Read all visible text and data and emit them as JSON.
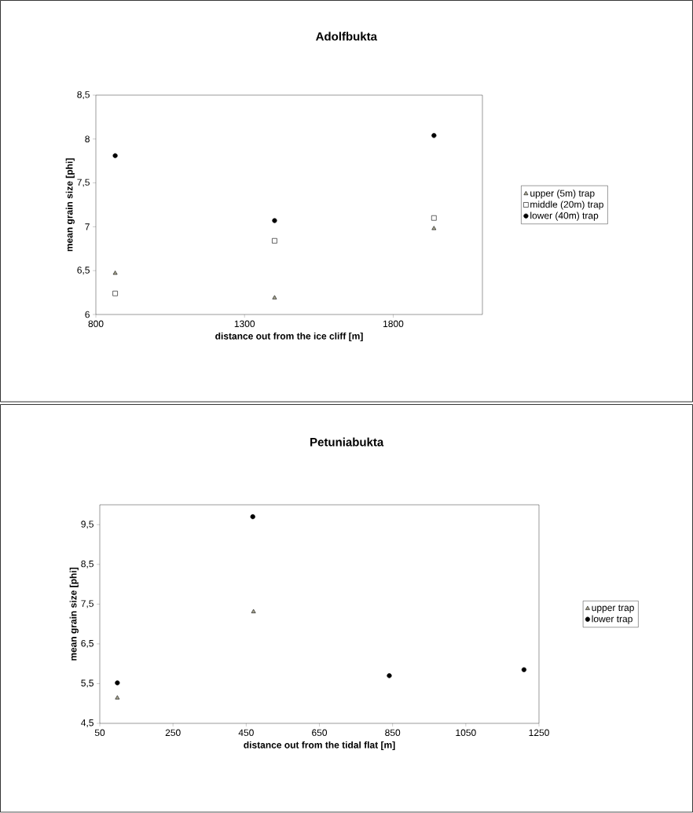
{
  "chart_data": [
    {
      "type": "scatter",
      "title": "Adolfbukta",
      "xlabel": "distance out from the ice cliff [m]",
      "ylabel": "mean grain size [phi]",
      "xlim": [
        800,
        2100
      ],
      "ylim": [
        6,
        8.5
      ],
      "xticks": [
        800,
        1300,
        1800
      ],
      "yticks": [
        6,
        {
          "value": 6.5,
          "label": "6,5"
        },
        7,
        {
          "value": 7.5,
          "label": "7,5"
        },
        8,
        {
          "value": 8.5,
          "label": "8,5"
        }
      ],
      "legend": "right",
      "grid": false,
      "series": [
        {
          "name": "upper (5m) trap",
          "color": "#a8a690",
          "marker": "triangle",
          "x": [
            865,
            1401,
            1937
          ],
          "values": [
            6.47,
            6.19,
            6.98
          ]
        },
        {
          "name": "middle (20m) trap",
          "color": "#ffffff",
          "marker": "square",
          "x": [
            865,
            1401,
            1937
          ],
          "values": [
            6.24,
            6.84,
            7.1
          ]
        },
        {
          "name": "lower (40m) trap",
          "color": "#000000",
          "marker": "circle",
          "x": [
            865,
            1401,
            1937
          ],
          "values": [
            7.81,
            7.07,
            8.04
          ]
        }
      ]
    },
    {
      "type": "scatter",
      "title": "Petuniabukta",
      "xlabel": "distance out from the tidal flat [m]",
      "ylabel": "mean grain size [phi]",
      "xlim": [
        50,
        1250
      ],
      "ylim": [
        4.5,
        10
      ],
      "xticks": [
        50,
        250,
        450,
        650,
        850,
        1050,
        1250
      ],
      "yticks": [
        {
          "value": 4.5,
          "label": "4,5"
        },
        {
          "value": 5.5,
          "label": "5,5"
        },
        {
          "value": 6.5,
          "label": "6,5"
        },
        {
          "value": 7.5,
          "label": "7,5"
        },
        {
          "value": 8.5,
          "label": "8,5"
        },
        {
          "value": 9.5,
          "label": "9,5"
        }
      ],
      "legend": "right",
      "grid": false,
      "series": [
        {
          "name": "upper trap",
          "color": "#a8a690",
          "marker": "triangle",
          "x": [
            98,
            470
          ],
          "values": [
            5.14,
            7.31
          ]
        },
        {
          "name": "lower trap",
          "color": "#000000",
          "marker": "circle",
          "x": [
            98,
            468,
            841,
            1209
          ],
          "values": [
            5.52,
            9.7,
            5.7,
            5.85
          ]
        }
      ]
    }
  ]
}
